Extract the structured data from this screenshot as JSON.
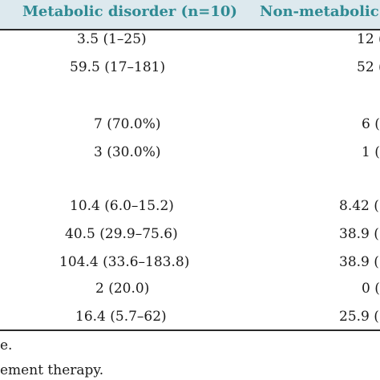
{
  "header": {
    "col_metabolic": "Metabolic disorder (n=10)",
    "col_nonmetabolic": "Non-metabolic"
  },
  "rows": [
    {
      "metabolic": "3.5 (1–25)",
      "nonmetabolic": "12 ("
    },
    {
      "metabolic": "59.5 (17–181)",
      "nonmetabolic": "52 ("
    },
    {
      "metabolic": "",
      "nonmetabolic": ""
    },
    {
      "metabolic": "7 (70.0%)",
      "nonmetabolic": "6 ("
    },
    {
      "metabolic": "3 (30.0%)",
      "nonmetabolic": "1 ("
    },
    {
      "metabolic": "",
      "nonmetabolic": ""
    },
    {
      "metabolic": "10.4 (6.0–15.2)",
      "nonmetabolic": "8.42 ("
    },
    {
      "metabolic": "40.5 (29.9–75.6)",
      "nonmetabolic": "38.9 ("
    },
    {
      "metabolic": "104.4 (33.6–183.8)",
      "nonmetabolic": "38.9 ("
    },
    {
      "metabolic": "2 (20.0)",
      "nonmetabolic": "0 ("
    },
    {
      "metabolic": "16.4 (5.7–62)",
      "nonmetabolic": "25.9 ("
    }
  ],
  "footnotes": [
    "e.",
    "ement therapy."
  ]
}
